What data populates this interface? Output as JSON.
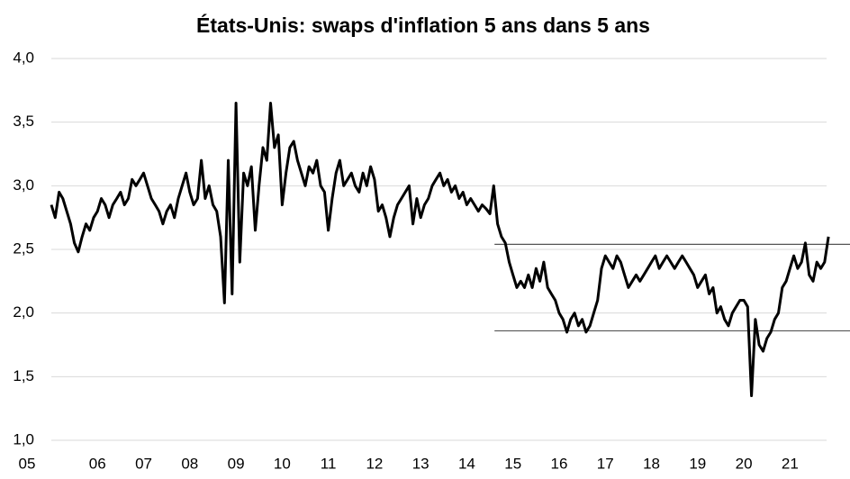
{
  "chart_data": {
    "type": "line",
    "title": "États-Unis: swaps d'inflation 5 ans dans 5 ans",
    "color": "#000000",
    "x": [
      2005.0,
      2005.083,
      2005.167,
      2005.25,
      2005.333,
      2005.417,
      2005.5,
      2005.583,
      2005.667,
      2005.75,
      2005.833,
      2005.917,
      2006.0,
      2006.083,
      2006.167,
      2006.25,
      2006.333,
      2006.417,
      2006.5,
      2006.583,
      2006.667,
      2006.75,
      2006.833,
      2006.917,
      2007.0,
      2007.083,
      2007.167,
      2007.25,
      2007.333,
      2007.417,
      2007.5,
      2007.583,
      2007.667,
      2007.75,
      2007.833,
      2007.917,
      2008.0,
      2008.083,
      2008.167,
      2008.25,
      2008.333,
      2008.417,
      2008.5,
      2008.583,
      2008.667,
      2008.75,
      2008.833,
      2008.917,
      2009.0,
      2009.083,
      2009.167,
      2009.25,
      2009.333,
      2009.417,
      2009.5,
      2009.583,
      2009.667,
      2009.75,
      2009.833,
      2009.917,
      2010.0,
      2010.083,
      2010.167,
      2010.25,
      2010.333,
      2010.417,
      2010.5,
      2010.583,
      2010.667,
      2010.75,
      2010.833,
      2010.917,
      2011.0,
      2011.083,
      2011.167,
      2011.25,
      2011.333,
      2011.417,
      2011.5,
      2011.583,
      2011.667,
      2011.75,
      2011.833,
      2011.917,
      2012.0,
      2012.083,
      2012.167,
      2012.25,
      2012.333,
      2012.417,
      2012.5,
      2012.583,
      2012.667,
      2012.75,
      2012.833,
      2012.917,
      2013.0,
      2013.083,
      2013.167,
      2013.25,
      2013.333,
      2013.417,
      2013.5,
      2013.583,
      2013.667,
      2013.75,
      2013.833,
      2013.917,
      2014.0,
      2014.083,
      2014.167,
      2014.25,
      2014.333,
      2014.417,
      2014.5,
      2014.583,
      2014.667,
      2014.75,
      2014.833,
      2014.917,
      2015.0,
      2015.083,
      2015.167,
      2015.25,
      2015.333,
      2015.417,
      2015.5,
      2015.583,
      2015.667,
      2015.75,
      2015.833,
      2015.917,
      2016.0,
      2016.083,
      2016.167,
      2016.25,
      2016.333,
      2016.417,
      2016.5,
      2016.583,
      2016.667,
      2016.75,
      2016.833,
      2016.917,
      2017.0,
      2017.083,
      2017.167,
      2017.25,
      2017.333,
      2017.417,
      2017.5,
      2017.583,
      2017.667,
      2017.75,
      2017.833,
      2017.917,
      2018.0,
      2018.083,
      2018.167,
      2018.25,
      2018.333,
      2018.417,
      2018.5,
      2018.583,
      2018.667,
      2018.75,
      2018.833,
      2018.917,
      2019.0,
      2019.083,
      2019.167,
      2019.25,
      2019.333,
      2019.417,
      2019.5,
      2019.583,
      2019.667,
      2019.75,
      2019.833,
      2019.917,
      2020.0,
      2020.083,
      2020.167,
      2020.25,
      2020.333,
      2020.417,
      2020.5,
      2020.583,
      2020.667,
      2020.75,
      2020.833,
      2020.917,
      2021.0,
      2021.083,
      2021.167,
      2021.25,
      2021.333,
      2021.417,
      2021.5,
      2021.583,
      2021.667,
      2021.75,
      2021.833
    ],
    "values": [
      2.85,
      2.75,
      2.95,
      2.9,
      2.8,
      2.7,
      2.55,
      2.48,
      2.6,
      2.7,
      2.65,
      2.75,
      2.8,
      2.9,
      2.85,
      2.75,
      2.85,
      2.9,
      2.95,
      2.85,
      2.9,
      3.05,
      3.0,
      3.05,
      3.1,
      3.0,
      2.9,
      2.85,
      2.8,
      2.7,
      2.8,
      2.85,
      2.75,
      2.9,
      3.0,
      3.1,
      2.95,
      2.85,
      2.9,
      3.2,
      2.9,
      3.0,
      2.85,
      2.8,
      2.6,
      2.08,
      3.2,
      2.15,
      3.65,
      2.4,
      3.1,
      3.0,
      3.15,
      2.65,
      3.0,
      3.3,
      3.2,
      3.65,
      3.3,
      3.4,
      2.85,
      3.1,
      3.3,
      3.35,
      3.2,
      3.1,
      3.0,
      3.15,
      3.1,
      3.2,
      3.0,
      2.95,
      2.65,
      2.9,
      3.1,
      3.2,
      3.0,
      3.05,
      3.1,
      3.0,
      2.95,
      3.1,
      3.0,
      3.15,
      3.05,
      2.8,
      2.85,
      2.75,
      2.6,
      2.75,
      2.85,
      2.9,
      2.95,
      3.0,
      2.7,
      2.9,
      2.75,
      2.85,
      2.9,
      3.0,
      3.05,
      3.1,
      3.0,
      3.05,
      2.95,
      3.0,
      2.9,
      2.95,
      2.85,
      2.9,
      2.85,
      2.8,
      2.85,
      2.82,
      2.78,
      3.0,
      2.7,
      2.6,
      2.55,
      2.4,
      2.3,
      2.2,
      2.25,
      2.2,
      2.3,
      2.2,
      2.35,
      2.25,
      2.4,
      2.2,
      2.15,
      2.1,
      2.0,
      1.95,
      1.85,
      1.95,
      2.0,
      1.9,
      1.95,
      1.85,
      1.9,
      2.0,
      2.1,
      2.35,
      2.45,
      2.4,
      2.35,
      2.45,
      2.4,
      2.3,
      2.2,
      2.25,
      2.3,
      2.25,
      2.3,
      2.35,
      2.4,
      2.45,
      2.35,
      2.4,
      2.45,
      2.4,
      2.35,
      2.4,
      2.45,
      2.4,
      2.35,
      2.3,
      2.2,
      2.25,
      2.3,
      2.15,
      2.2,
      2.0,
      2.05,
      1.95,
      1.9,
      2.0,
      2.05,
      2.1,
      2.1,
      2.05,
      1.35,
      1.95,
      1.75,
      1.7,
      1.8,
      1.85,
      1.95,
      2.0,
      2.2,
      2.25,
      2.35,
      2.45,
      2.35,
      2.4,
      2.55,
      2.3,
      2.25,
      2.4,
      2.35,
      2.4,
      2.6
    ],
    "xlim": [
      2005,
      2022.3
    ],
    "xticks": [
      {
        "value": 2005,
        "label": "05"
      },
      {
        "value": 2006,
        "label": "06"
      },
      {
        "value": 2007,
        "label": "07"
      },
      {
        "value": 2008,
        "label": "08"
      },
      {
        "value": 2009,
        "label": "09"
      },
      {
        "value": 2010,
        "label": "10"
      },
      {
        "value": 2011,
        "label": "11"
      },
      {
        "value": 2012,
        "label": "12"
      },
      {
        "value": 2013,
        "label": "13"
      },
      {
        "value": 2014,
        "label": "14"
      },
      {
        "value": 2015,
        "label": "15"
      },
      {
        "value": 2016,
        "label": "16"
      },
      {
        "value": 2017,
        "label": "17"
      },
      {
        "value": 2018,
        "label": "18"
      },
      {
        "value": 2019,
        "label": "19"
      },
      {
        "value": 2020,
        "label": "20"
      },
      {
        "value": 2021,
        "label": "21"
      }
    ],
    "ylim": [
      1,
      4
    ],
    "yticks": [
      {
        "value": 1,
        "label": "1,0"
      },
      {
        "value": 1.5,
        "label": "1,5"
      },
      {
        "value": 2,
        "label": "2,0"
      },
      {
        "value": 2.5,
        "label": "2,5"
      },
      {
        "value": 3,
        "label": "3,0"
      },
      {
        "value": 3.5,
        "label": "3,5"
      },
      {
        "value": 4,
        "label": "4,0"
      }
    ],
    "grid": true,
    "reference_lines": [
      {
        "y": 2.54,
        "x_start": 2014.6
      },
      {
        "y": 1.86,
        "x_start": 2014.6
      }
    ]
  }
}
